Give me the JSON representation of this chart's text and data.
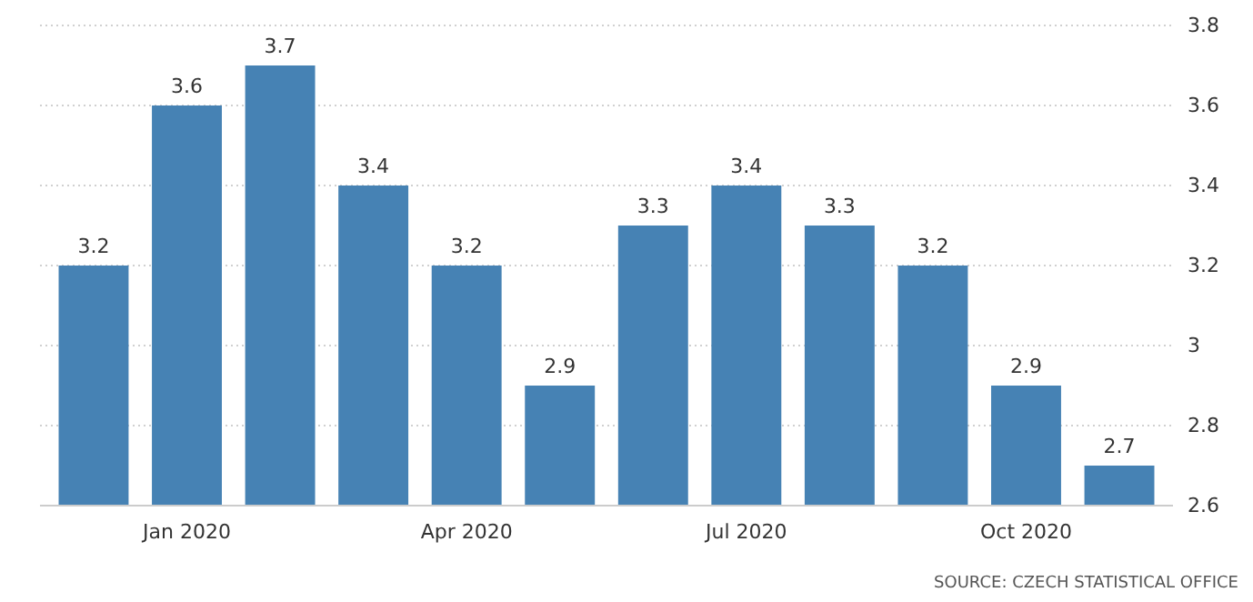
{
  "chart_data": {
    "type": "bar",
    "categories": [
      null,
      "Jan 2020",
      null,
      null,
      "Apr 2020",
      null,
      null,
      "Jul 2020",
      null,
      null,
      "Oct 2020",
      null
    ],
    "values": [
      3.2,
      3.6,
      3.7,
      3.4,
      3.2,
      2.9,
      3.3,
      3.4,
      3.3,
      3.2,
      2.9,
      2.7
    ],
    "color": "#4682b4",
    "ylim": [
      2.6,
      3.8
    ],
    "yticks": [
      2.6,
      2.8,
      3,
      3.2,
      3.4,
      3.6,
      3.8
    ],
    "grid": "y",
    "data_labels": true,
    "annotations": [
      "SOURCE: CZECH STATISTICAL OFFICE"
    ]
  }
}
